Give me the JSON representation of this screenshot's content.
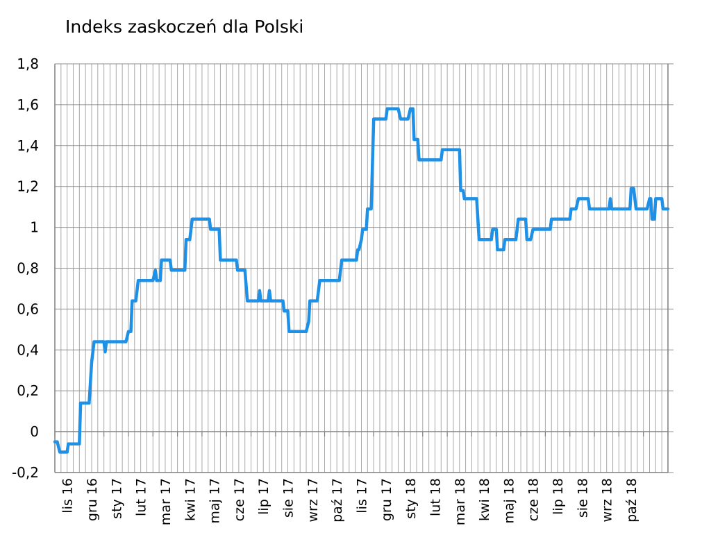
{
  "chart_data": {
    "type": "line",
    "title": "Indeks zaskoczeń dla Polski",
    "xlabel": "",
    "ylabel": "",
    "ylim": [
      -0.2,
      1.8
    ],
    "y_ticks": [
      "-0,2",
      "0",
      "0,2",
      "0,4",
      "0,6",
      "0,8",
      "1",
      "1,2",
      "1,4",
      "1,6",
      "1,8"
    ],
    "x_tick_labels": [
      "lis 16",
      "gru 16",
      "sty 17",
      "lut 17",
      "mar 17",
      "kwi 17",
      "maj 17",
      "cze 17",
      "lip 17",
      "sie 17",
      "wrz 17",
      "paź 17",
      "lis 17",
      "gru 17",
      "sty 18",
      "lut 18",
      "mar 18",
      "kwi 18",
      "maj 18",
      "cze 18",
      "lip 18",
      "sie 18",
      "wrz 18",
      "paź 18"
    ],
    "x_range_months": [
      0,
      25
    ],
    "grid": true,
    "line_color": "#1E90E6",
    "series": [
      {
        "name": "",
        "points": [
          [
            0.0,
            -0.05
          ],
          [
            0.1,
            -0.05
          ],
          [
            0.2,
            -0.1
          ],
          [
            0.5,
            -0.1
          ],
          [
            0.55,
            -0.06
          ],
          [
            1.0,
            -0.06
          ],
          [
            1.05,
            0.14
          ],
          [
            1.4,
            0.14
          ],
          [
            1.5,
            0.34
          ],
          [
            1.6,
            0.44
          ],
          [
            2.0,
            0.44
          ],
          [
            2.05,
            0.39
          ],
          [
            2.1,
            0.44
          ],
          [
            2.9,
            0.44
          ],
          [
            3.0,
            0.49
          ],
          [
            3.1,
            0.49
          ],
          [
            3.15,
            0.64
          ],
          [
            3.3,
            0.64
          ],
          [
            3.4,
            0.74
          ],
          [
            4.0,
            0.74
          ],
          [
            4.1,
            0.79
          ],
          [
            4.15,
            0.74
          ],
          [
            4.3,
            0.74
          ],
          [
            4.35,
            0.84
          ],
          [
            4.7,
            0.84
          ],
          [
            4.75,
            0.79
          ],
          [
            5.3,
            0.79
          ],
          [
            5.35,
            0.94
          ],
          [
            5.5,
            0.94
          ],
          [
            5.6,
            1.04
          ],
          [
            6.3,
            1.04
          ],
          [
            6.35,
            0.99
          ],
          [
            6.7,
            0.99
          ],
          [
            6.75,
            0.84
          ],
          [
            7.4,
            0.84
          ],
          [
            7.45,
            0.79
          ],
          [
            7.75,
            0.79
          ],
          [
            7.85,
            0.64
          ],
          [
            8.3,
            0.64
          ],
          [
            8.35,
            0.69
          ],
          [
            8.4,
            0.64
          ],
          [
            8.7,
            0.64
          ],
          [
            8.75,
            0.69
          ],
          [
            8.8,
            0.64
          ],
          [
            9.3,
            0.64
          ],
          [
            9.35,
            0.59
          ],
          [
            9.5,
            0.59
          ],
          [
            9.55,
            0.49
          ],
          [
            10.25,
            0.49
          ],
          [
            10.35,
            0.54
          ],
          [
            10.4,
            0.64
          ],
          [
            10.7,
            0.64
          ],
          [
            10.8,
            0.74
          ],
          [
            11.6,
            0.74
          ],
          [
            11.7,
            0.84
          ],
          [
            12.3,
            0.84
          ],
          [
            12.35,
            0.89
          ],
          [
            12.4,
            0.89
          ],
          [
            12.5,
            0.94
          ],
          [
            12.55,
            0.99
          ],
          [
            12.7,
            0.99
          ],
          [
            12.75,
            1.09
          ],
          [
            12.9,
            1.09
          ],
          [
            13.0,
            1.53
          ],
          [
            13.5,
            1.53
          ],
          [
            13.55,
            1.58
          ],
          [
            14.0,
            1.58
          ],
          [
            14.1,
            1.53
          ],
          [
            14.4,
            1.53
          ],
          [
            14.5,
            1.58
          ],
          [
            14.6,
            1.58
          ],
          [
            14.65,
            1.43
          ],
          [
            14.8,
            1.43
          ],
          [
            14.85,
            1.33
          ],
          [
            15.75,
            1.33
          ],
          [
            15.8,
            1.38
          ],
          [
            16.5,
            1.38
          ],
          [
            16.55,
            1.18
          ],
          [
            16.65,
            1.18
          ],
          [
            16.7,
            1.14
          ],
          [
            17.2,
            1.14
          ],
          [
            17.3,
            0.94
          ],
          [
            17.8,
            0.94
          ],
          [
            17.85,
            0.99
          ],
          [
            18.0,
            0.99
          ],
          [
            18.05,
            0.89
          ],
          [
            18.3,
            0.89
          ],
          [
            18.35,
            0.94
          ],
          [
            18.8,
            0.94
          ],
          [
            18.9,
            1.04
          ],
          [
            19.2,
            1.04
          ],
          [
            19.25,
            0.94
          ],
          [
            19.4,
            0.94
          ],
          [
            19.5,
            0.99
          ],
          [
            20.2,
            0.99
          ],
          [
            20.25,
            1.04
          ],
          [
            21.0,
            1.04
          ],
          [
            21.05,
            1.09
          ],
          [
            21.25,
            1.09
          ],
          [
            21.35,
            1.14
          ],
          [
            21.75,
            1.14
          ],
          [
            21.8,
            1.09
          ],
          [
            22.6,
            1.09
          ],
          [
            22.65,
            1.14
          ],
          [
            22.7,
            1.09
          ],
          [
            23.45,
            1.09
          ],
          [
            23.5,
            1.19
          ],
          [
            23.6,
            1.19
          ],
          [
            23.7,
            1.09
          ],
          [
            24.15,
            1.09
          ],
          [
            24.25,
            1.14
          ],
          [
            24.3,
            1.14
          ],
          [
            24.35,
            1.04
          ],
          [
            24.45,
            1.04
          ],
          [
            24.5,
            1.14
          ],
          [
            24.75,
            1.14
          ],
          [
            24.8,
            1.09
          ],
          [
            25.0,
            1.09
          ]
        ]
      }
    ]
  }
}
